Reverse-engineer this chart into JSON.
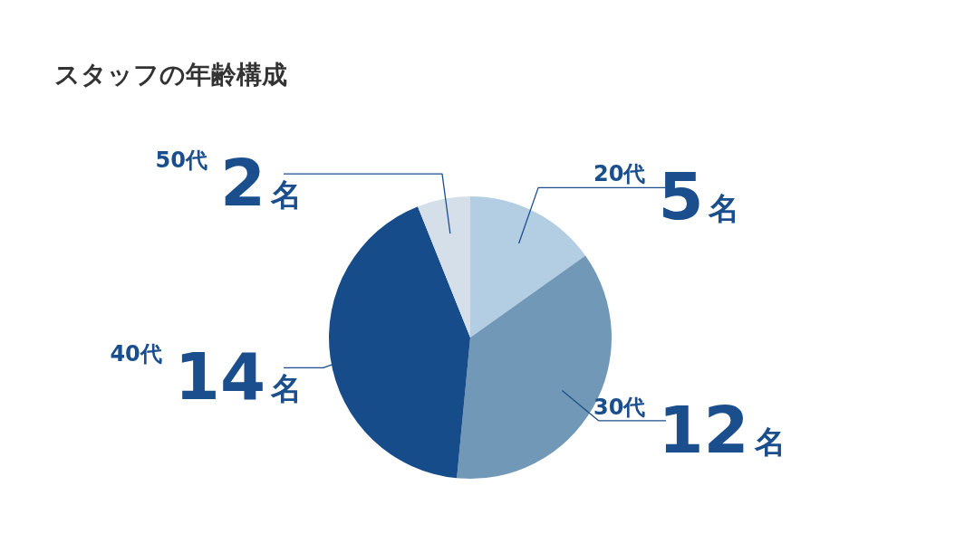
{
  "chart_data": {
    "type": "pie",
    "title": "スタッフの年齢構成",
    "categories": [
      "20代",
      "30代",
      "40代",
      "50代"
    ],
    "values": [
      5,
      12,
      14,
      2
    ],
    "value_labels": [
      "5名",
      "12名",
      "14名",
      "2名"
    ],
    "colors": [
      "#b3cde3",
      "#7298b8",
      "#164c8a",
      "#d5dfe9"
    ],
    "legend": false
  }
}
